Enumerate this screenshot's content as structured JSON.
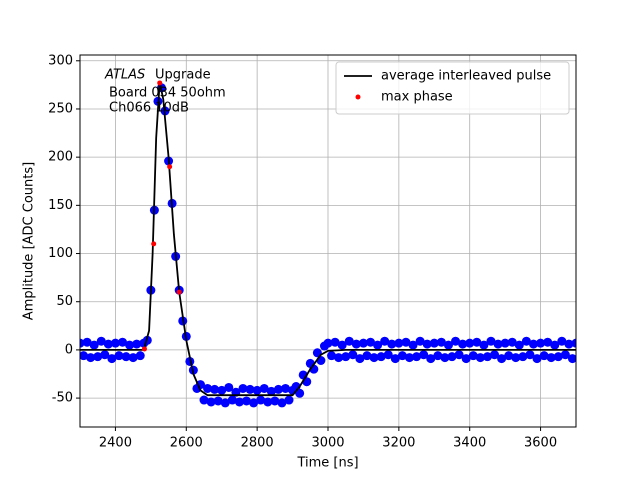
{
  "chart_data": {
    "type": "scatter",
    "xlabel": "Time [ns]",
    "ylabel": "Amplitude [ADC Counts]",
    "annotation": {
      "emphasis": "ATLAS",
      "lines": [
        "Upgrade",
        "Board 034 50ohm",
        "Ch066 10dB"
      ]
    },
    "xlim": [
      2300,
      3700
    ],
    "ylim": [
      -80,
      306
    ],
    "xticks": [
      2400,
      2600,
      2800,
      3000,
      3200,
      3400,
      3600
    ],
    "yticks": [
      -50,
      0,
      50,
      100,
      150,
      200,
      250,
      300
    ],
    "grid": true,
    "legend": "upper right",
    "series": [
      {
        "type": "scatter",
        "color": "#0000ff",
        "x": [
          2300,
          2310,
          2320,
          2330,
          2340,
          2350,
          2360,
          2370,
          2380,
          2390,
          2400,
          2410,
          2420,
          2430,
          2440,
          2450,
          2460,
          2470,
          2480,
          2490,
          2500,
          2510,
          2520,
          2530,
          2540,
          2550,
          2560,
          2570,
          2580,
          2590,
          2600,
          2610,
          2620,
          2630,
          2640,
          2650,
          2660,
          2670,
          2680,
          2690,
          2700,
          2710,
          2720,
          2730,
          2740,
          2750,
          2760,
          2770,
          2780,
          2790,
          2800,
          2810,
          2820,
          2830,
          2840,
          2850,
          2860,
          2870,
          2880,
          2890,
          2900,
          2910,
          2920,
          2930,
          2940,
          2950,
          2960,
          2970,
          2980,
          2990,
          3000,
          3010,
          3020,
          3030,
          3040,
          3050,
          3060,
          3070,
          3080,
          3090,
          3100,
          3110,
          3120,
          3130,
          3140,
          3150,
          3160,
          3170,
          3180,
          3190,
          3200,
          3210,
          3220,
          3230,
          3240,
          3250,
          3260,
          3270,
          3280,
          3290,
          3300,
          3310,
          3320,
          3330,
          3340,
          3350,
          3360,
          3370,
          3380,
          3390,
          3400,
          3410,
          3420,
          3430,
          3440,
          3450,
          3460,
          3470,
          3480,
          3490,
          3500,
          3510,
          3520,
          3530,
          3540,
          3550,
          3560,
          3570,
          3580,
          3590,
          3600,
          3610,
          3620,
          3630,
          3640,
          3650,
          3660,
          3670,
          3680,
          3690,
          3700
        ],
        "values": [
          7,
          -6,
          8,
          -8,
          5,
          -7,
          9,
          -5,
          6,
          -9,
          7,
          -6,
          8,
          -7,
          5,
          -8,
          6,
          -6,
          7,
          10,
          62,
          145,
          258,
          272,
          248,
          196,
          152,
          97,
          62,
          30,
          14,
          -12,
          -21,
          -40,
          -36,
          -52,
          -40,
          -54,
          -41,
          -53,
          -42,
          -55,
          -39,
          -52,
          -44,
          -54,
          -40,
          -53,
          -41,
          -55,
          -42,
          -52,
          -40,
          -54,
          -43,
          -53,
          -41,
          -55,
          -40,
          -52,
          -42,
          -38,
          -45,
          -26,
          -33,
          -14,
          -20,
          -3,
          -11,
          4,
          7,
          -6,
          8,
          -8,
          5,
          -7,
          9,
          -5,
          6,
          -9,
          7,
          -6,
          8,
          -8,
          5,
          -7,
          9,
          -5,
          6,
          -9,
          7,
          -6,
          8,
          -8,
          5,
          -7,
          9,
          -5,
          6,
          -9,
          7,
          -6,
          8,
          -8,
          5,
          -7,
          9,
          -5,
          6,
          -9,
          7,
          -6,
          8,
          -8,
          5,
          -7,
          9,
          -5,
          6,
          -9,
          7,
          -6,
          8,
          -8,
          5,
          -7,
          9,
          -5,
          6,
          -9,
          7,
          -6,
          8,
          -8,
          5,
          -7,
          9,
          -5,
          6,
          -9,
          7
        ]
      },
      {
        "type": "line",
        "name": "average interleaved pulse",
        "color": "#000000",
        "x": [
          2300,
          2480,
          2495,
          2505,
          2515,
          2525,
          2535,
          2550,
          2565,
          2580,
          2600,
          2620,
          2640,
          2660,
          2900,
          2920,
          2950,
          2980,
          3000,
          3050,
          3700
        ],
        "values": [
          0,
          0,
          20,
          100,
          220,
          278,
          260,
          200,
          120,
          60,
          10,
          -25,
          -42,
          -47,
          -47,
          -38,
          -20,
          -5,
          -1,
          0,
          0
        ]
      },
      {
        "type": "scatter",
        "name": "max phase",
        "color": "#ff0000",
        "x": [
          2482,
          2508,
          2525,
          2553,
          2580
        ],
        "values": [
          1,
          110,
          277,
          190,
          60
        ]
      }
    ]
  }
}
